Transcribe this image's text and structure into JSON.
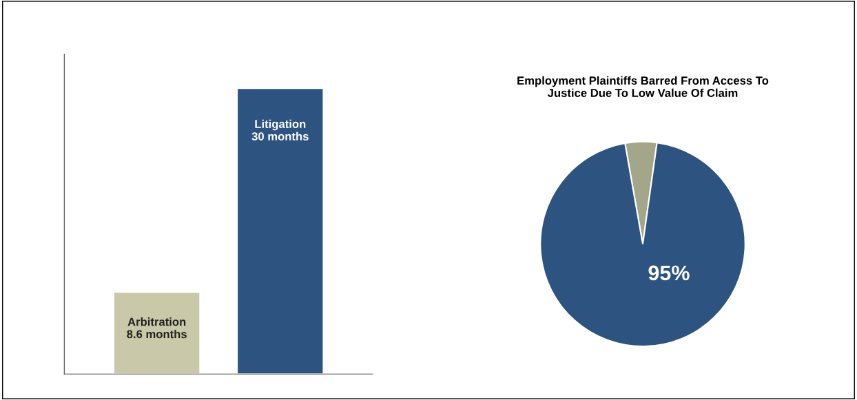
{
  "chart_data": [
    {
      "type": "bar",
      "categories": [
        "Arbitration",
        "Litigation"
      ],
      "values": [
        8.6,
        30
      ],
      "colors": [
        "#c9c9a9",
        "#2d5480"
      ],
      "value_labels": [
        "8.6 months",
        "30 months"
      ]
    },
    {
      "type": "pie",
      "title": "Employment Plaintiffs Barred From Access To\nJustice Due To Low Value Of Claim",
      "categories": [
        null,
        null
      ],
      "values": [
        5,
        95
      ],
      "colors": [
        "#a4a68a",
        "#2d5480"
      ],
      "value_labels": [
        null,
        "95%"
      ]
    }
  ]
}
